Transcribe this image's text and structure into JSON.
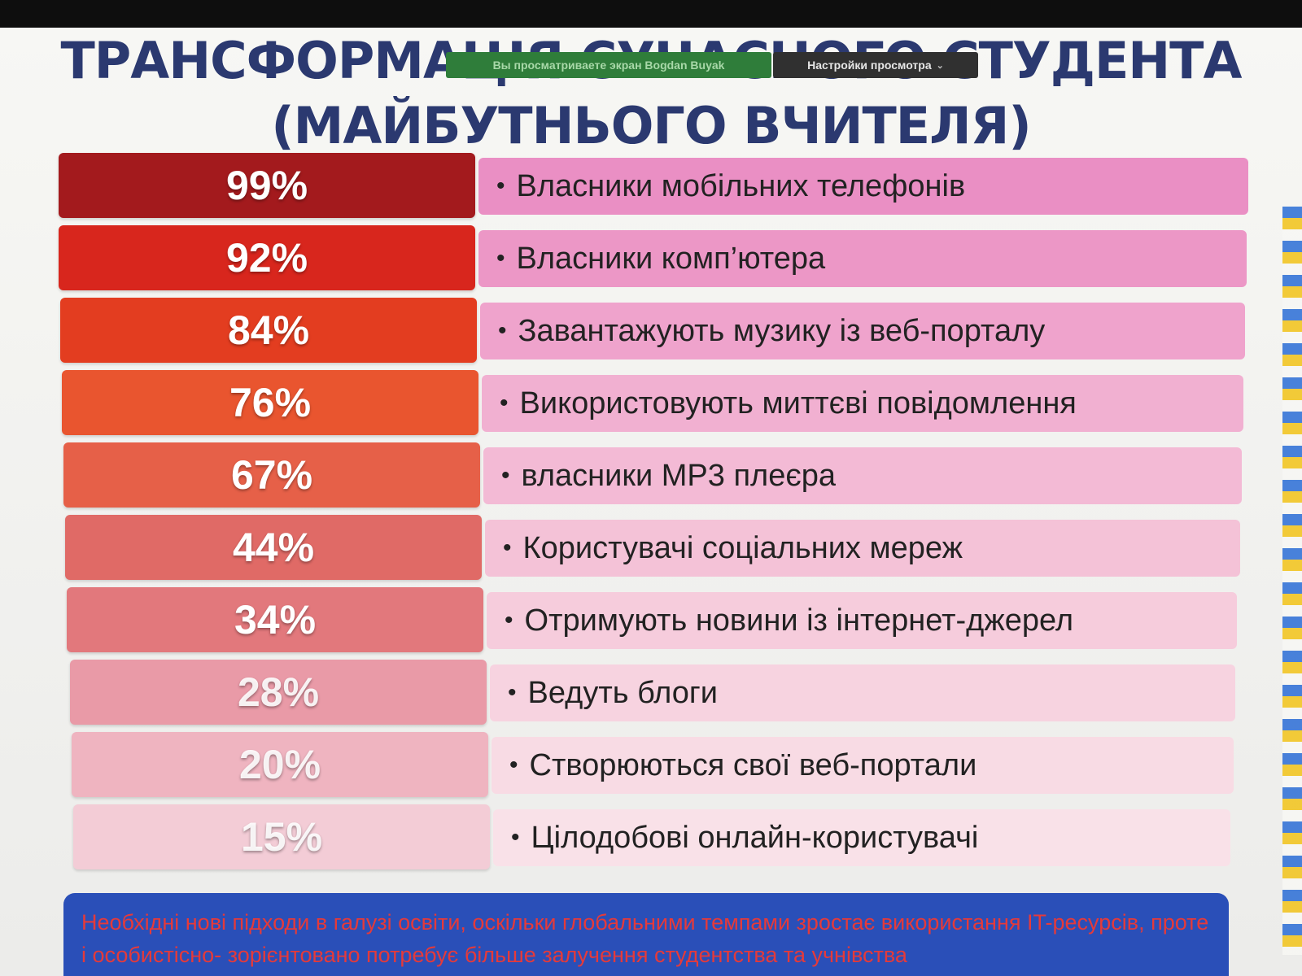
{
  "share_banner": "Вы просматриваете экран Bogdan Buyak",
  "view_settings": "Настройки просмотра",
  "title_line1": "ТРАНСФОРМАЦІЯ СУЧАСНОГО СТУДЕНТА",
  "title_line2": "(МАЙБУТНЬОГО ВЧИТЕЛЯ)",
  "bullet_char": "•",
  "rows": [
    {
      "pct": "99%",
      "label": "Власники мобільних телефонів"
    },
    {
      "pct": "92%",
      "label": "Власники комп’ютера"
    },
    {
      "pct": "84%",
      "label": "Завантажують музику із веб-порталу"
    },
    {
      "pct": "76%",
      "label": "Використовують миттєві повідомлення"
    },
    {
      "pct": "67%",
      "label": "власники MP3 плеєра"
    },
    {
      "pct": "44%",
      "label": "Користувачі соціальних мереж"
    },
    {
      "pct": "34%",
      "label": "Отримують новини із інтернет-джерел"
    },
    {
      "pct": "28%",
      "label": "Ведуть блоги"
    },
    {
      "pct": "20%",
      "label": "Створюються свої веб-портали"
    },
    {
      "pct": "15%",
      "label": "Цілодобові онлайн-користувачі"
    }
  ],
  "colors": {
    "pct": [
      "#a31a1d",
      "#d8261d",
      "#e33d20",
      "#e9552f",
      "#e66048",
      "#e06a66",
      "#e2787c",
      "#e99aa7",
      "#efb4c0",
      "#f3ccd6"
    ],
    "band": [
      "#ea8fc4",
      "#ec97c6",
      "#efa3cc",
      "#f1b0d1",
      "#f3bad5",
      "#f4c2d7",
      "#f6ccdc",
      "#f7d3e0",
      "#f8dbe4",
      "#f9e1e8"
    ]
  },
  "bottom_text": "Необхідні нові підходи в галузі освіти, оскільки глобальними темпами зростає використання IT-ресурсів, проте і особистісно- зорієнтовано потребує більше залучення студентства та учнівства"
}
